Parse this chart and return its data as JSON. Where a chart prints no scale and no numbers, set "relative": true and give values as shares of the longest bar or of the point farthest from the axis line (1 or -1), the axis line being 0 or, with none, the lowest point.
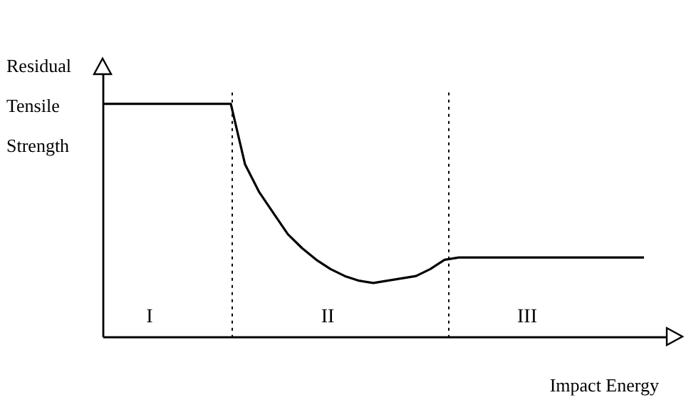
{
  "chart_data": {
    "type": "line",
    "relative": true,
    "xlabel": "Impact Energy",
    "ylabel": "Residual Tensile Strength",
    "categories": [
      null,
      null,
      null,
      null,
      null,
      null,
      null,
      null,
      null,
      null,
      null,
      null,
      null,
      null,
      null,
      null,
      null,
      null,
      null,
      null,
      null,
      null,
      null,
      null,
      null,
      null,
      null,
      null,
      null,
      null,
      null,
      null,
      null,
      null,
      null,
      null,
      null,
      null,
      null
    ],
    "series": [
      {
        "color": "#000000",
        "values": [
          1,
          1,
          1,
          1,
          1,
          1,
          1,
          1,
          1,
          1,
          0.74,
          0.62,
          0.53,
          0.44,
          0.38,
          0.33,
          0.29,
          0.26,
          0.24,
          0.23,
          0.24,
          0.25,
          0.26,
          0.29,
          0.33,
          0.34,
          0.34,
          0.34,
          0.34,
          0.34,
          0.34,
          0.34,
          0.34,
          0.34,
          0.34,
          0.34,
          0.34,
          0.34,
          0.34
        ]
      }
    ],
    "line_style": "solid",
    "annotations": [
      "I",
      "II",
      "III"
    ]
  }
}
